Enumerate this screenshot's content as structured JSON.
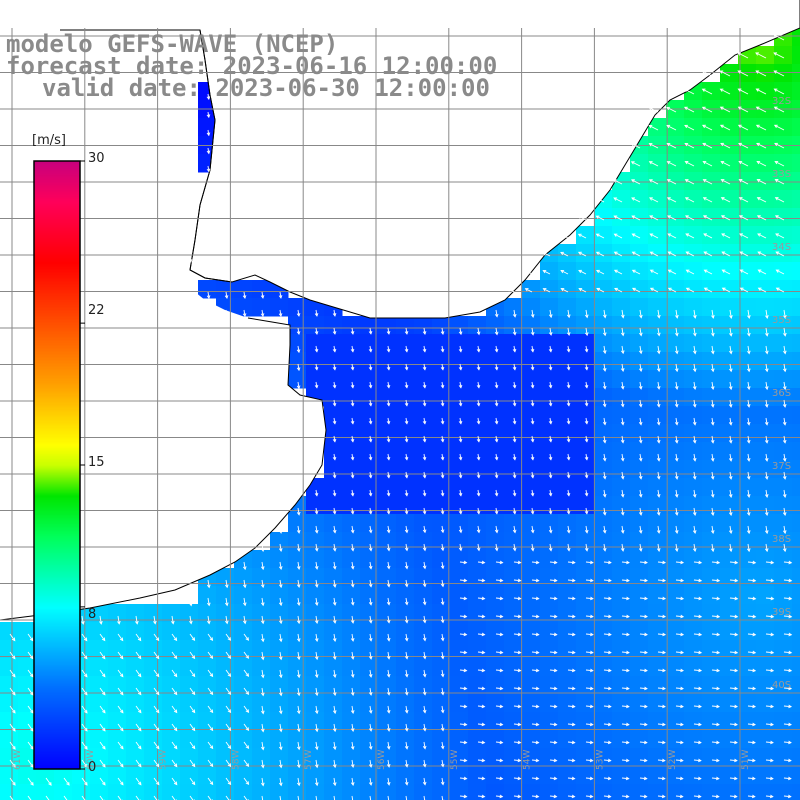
{
  "title": {
    "line1": "modelo GEFS-WAVE (NCEP)",
    "line2": "forecast date: 2023-06-16 12:00:00",
    "line3": "valid date: 2023-06-30 12:00:00"
  },
  "colorbar": {
    "unit": "[m/s]",
    "ticks": [
      "30",
      "22",
      "15",
      "8",
      "0"
    ],
    "tick_values": [
      30,
      22,
      15,
      8,
      0
    ],
    "range": [
      0,
      30
    ],
    "colors": [
      "#0000ff",
      "#0096ff",
      "#00ffff",
      "#00ff64",
      "#00ff00",
      "#aaff00",
      "#ffff00",
      "#ffa500",
      "#ff5000",
      "#ff0000",
      "#ff0064",
      "#c8007d"
    ]
  },
  "map": {
    "land_color": "#ffffff",
    "coast_color": "#000000",
    "grid_color": "#888888",
    "lat_labels": [
      "32S",
      "33S",
      "34S",
      "35S",
      "36S",
      "37S",
      "38S",
      "39S",
      "40S"
    ],
    "lon_labels": [
      "61W",
      "60W",
      "59W",
      "58W",
      "57W",
      "56W",
      "55W",
      "54W",
      "53W",
      "52W",
      "51W"
    ]
  }
}
